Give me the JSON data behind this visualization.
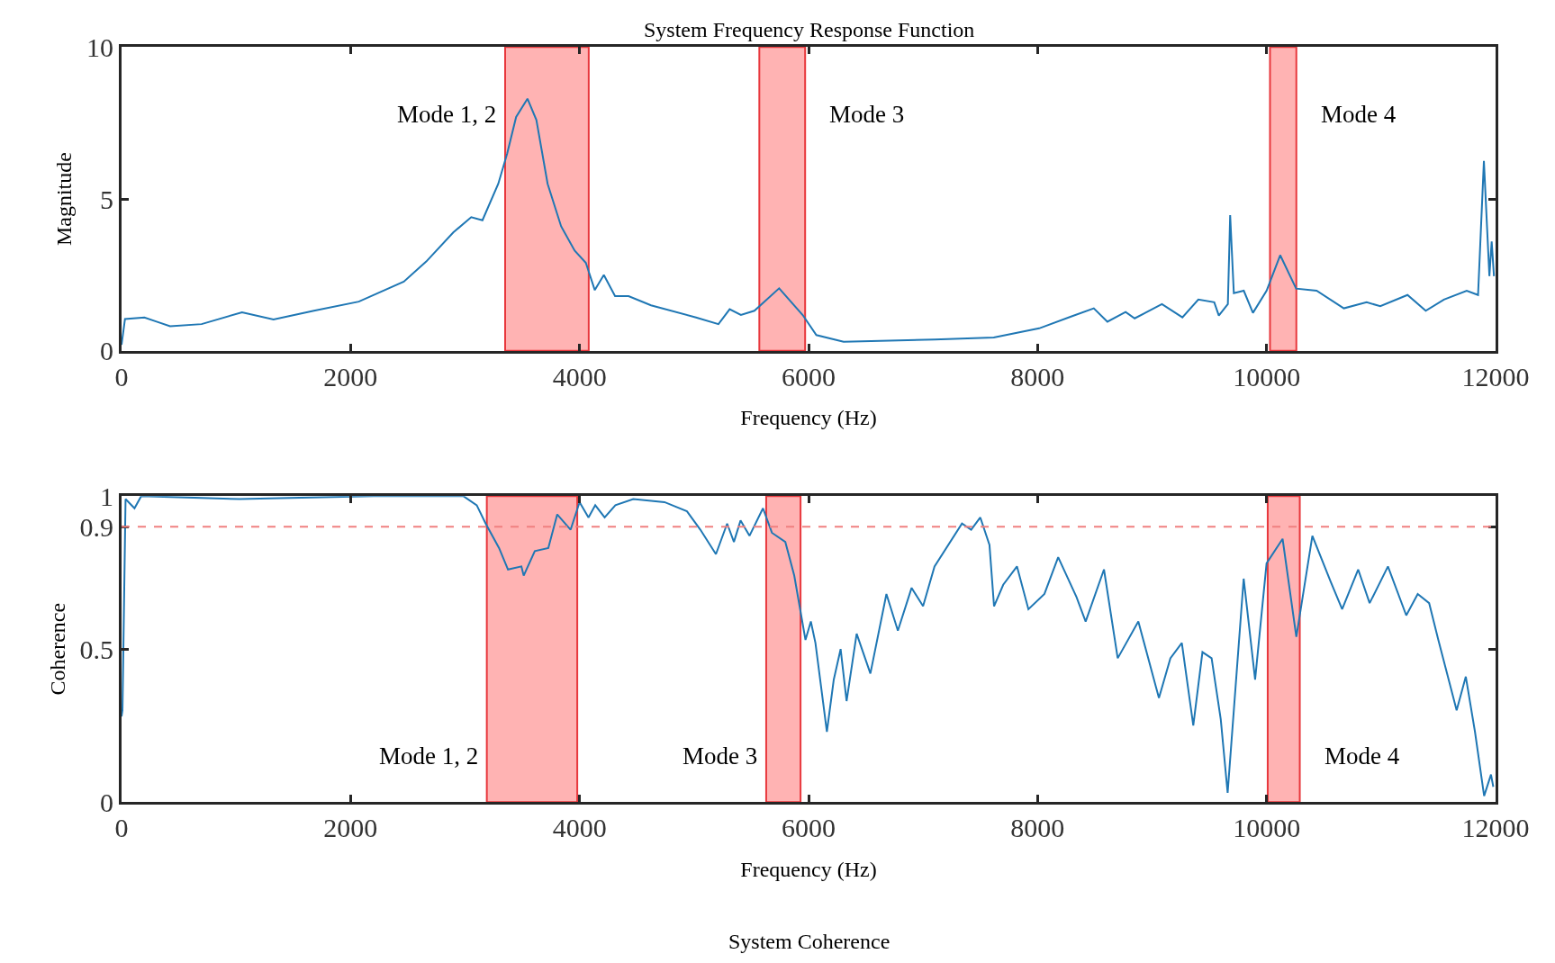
{
  "chart_data": [
    {
      "type": "line",
      "title": "System Frequency Response Function",
      "xlabel": "Frequency (Hz)",
      "ylabel": "Magnitude",
      "x": [
        0,
        30,
        200,
        306,
        424,
        699,
        1052,
        1327,
        1680,
        2072,
        2465,
        2661,
        2897,
        3054,
        3152,
        3290,
        3368,
        3446,
        3545,
        3623,
        3721,
        3839,
        3957,
        4055,
        4133,
        4212,
        4310,
        4428,
        4624,
        5017,
        5213,
        5311,
        5409,
        5527,
        5743,
        5949,
        6068,
        6306,
        7100,
        7617,
        8014,
        8292,
        8491,
        8610,
        8769,
        8848,
        9086,
        9265,
        9404,
        9543,
        9583,
        9662,
        9682,
        9714,
        9801,
        9881,
        10000,
        10119,
        10258,
        10437,
        10675,
        10874,
        10993,
        11231,
        11390,
        11549,
        11748,
        11847,
        11898,
        11946,
        11966,
        11986
      ],
      "series": [
        {
          "color": "#1f77b4",
          "values": [
            0.2,
            1.05,
            1.1,
            0.96,
            0.81,
            0.88,
            1.27,
            1.03,
            1.32,
            1.62,
            2.28,
            2.94,
            3.9,
            4.4,
            4.3,
            5.5,
            6.5,
            7.7,
            8.3,
            7.6,
            5.5,
            4.1,
            3.3,
            2.9,
            2.0,
            2.5,
            1.8,
            1.8,
            1.5,
            1.1,
            0.88,
            1.37,
            1.18,
            1.32,
            2.06,
            1.18,
            0.52,
            0.3,
            0.37,
            0.44,
            0.74,
            1.13,
            1.4,
            0.96,
            1.28,
            1.07,
            1.54,
            1.1,
            1.69,
            1.6,
            1.16,
            1.54,
            4.47,
            1.9,
            1.98,
            1.25,
            1.98,
            3.15,
            2.05,
            1.98,
            1.4,
            1.6,
            1.47,
            1.84,
            1.32,
            1.69,
            1.98,
            1.84,
            6.25,
            2.46,
            3.6,
            2.46
          ]
        }
      ],
      "xlim": [
        0,
        12000
      ],
      "ylim": [
        0,
        10
      ],
      "xticks": [
        0,
        2000,
        4000,
        6000,
        8000,
        10000,
        12000
      ],
      "yticks": [
        0,
        5,
        10
      ],
      "line_style": "solid",
      "marker": "none",
      "grid": false,
      "bands": [
        {
          "axis": "x",
          "from": 3350,
          "to": 4080,
          "color": "#ffb3b3",
          "label": "Mode 1, 2"
        },
        {
          "axis": "x",
          "from": 5570,
          "to": 5970,
          "color": "#ffb3b3",
          "label": "Mode 3"
        },
        {
          "axis": "x",
          "from": 10030,
          "to": 10260,
          "color": "#ffb3b3",
          "label": "Mode 4"
        }
      ]
    },
    {
      "type": "line",
      "title": "System Coherence",
      "xlabel": "Frequency (Hz)",
      "ylabel": "Coherence",
      "x": [
        0,
        8,
        35,
        113,
        172,
        1031,
        2203,
        2984,
        3102,
        3180,
        3297,
        3375,
        3492,
        3512,
        3609,
        3727,
        3805,
        3922,
        4000,
        4078,
        4137,
        4219,
        4313,
        4469,
        4742,
        4938,
        5055,
        5191,
        5289,
        5348,
        5406,
        5484,
        5602,
        5680,
        5797,
        5875,
        5973,
        6020,
        6060,
        6160,
        6220,
        6280,
        6332,
        6420,
        6540,
        6680,
        6780,
        6900,
        7000,
        7100,
        7340,
        7420,
        7500,
        7580,
        7620,
        7700,
        7820,
        7920,
        8060,
        8180,
        8340,
        8420,
        8580,
        8700,
        8880,
        9060,
        9160,
        9260,
        9360,
        9440,
        9520,
        9600,
        9660,
        9800,
        9900,
        10000,
        10140,
        10260,
        10400,
        10560,
        10660,
        10800,
        10900,
        11060,
        11220,
        11320,
        11420,
        11500,
        11660,
        11740,
        11820,
        11900,
        11960,
        11980
      ],
      "series": [
        {
          "color": "#1f77b4",
          "values": [
            0.28,
            0.3,
            0.99,
            0.96,
            1.0,
            0.99,
            1.0,
            1.0,
            0.97,
            0.91,
            0.83,
            0.76,
            0.77,
            0.74,
            0.82,
            0.83,
            0.94,
            0.89,
            0.98,
            0.93,
            0.97,
            0.93,
            0.97,
            0.99,
            0.98,
            0.95,
            0.89,
            0.81,
            0.91,
            0.85,
            0.92,
            0.87,
            0.96,
            0.88,
            0.85,
            0.74,
            0.53,
            0.59,
            0.52,
            0.23,
            0.4,
            0.5,
            0.33,
            0.55,
            0.42,
            0.68,
            0.56,
            0.7,
            0.64,
            0.77,
            0.91,
            0.89,
            0.93,
            0.84,
            0.64,
            0.71,
            0.77,
            0.63,
            0.68,
            0.8,
            0.67,
            0.59,
            0.76,
            0.47,
            0.59,
            0.34,
            0.47,
            0.52,
            0.25,
            0.49,
            0.47,
            0.27,
            0.03,
            0.73,
            0.4,
            0.78,
            0.86,
            0.54,
            0.87,
            0.72,
            0.63,
            0.76,
            0.65,
            0.77,
            0.61,
            0.68,
            0.65,
            0.53,
            0.3,
            0.41,
            0.23,
            0.02,
            0.09,
            0.05
          ]
        }
      ],
      "xlim": [
        0,
        12000
      ],
      "ylim": [
        0,
        1
      ],
      "xticks": [
        0,
        2000,
        4000,
        6000,
        8000,
        10000,
        12000
      ],
      "yticks": [
        0,
        0.5,
        0.9,
        1
      ],
      "line_style": "solid",
      "marker": "none",
      "grid": false,
      "ref_lines": [
        {
          "axis": "y",
          "value": 0.9,
          "color": "#f08080",
          "line_style": "dashed"
        }
      ],
      "bands": [
        {
          "axis": "x",
          "from": 3190,
          "to": 3980,
          "color": "#ffb3b3",
          "label": "Mode 1, 2"
        },
        {
          "axis": "x",
          "from": 5630,
          "to": 5930,
          "color": "#ffb3b3",
          "label": "Mode 3"
        },
        {
          "axis": "x",
          "from": 10010,
          "to": 10290,
          "color": "#ffb3b3",
          "label": "Mode 4"
        }
      ]
    }
  ]
}
